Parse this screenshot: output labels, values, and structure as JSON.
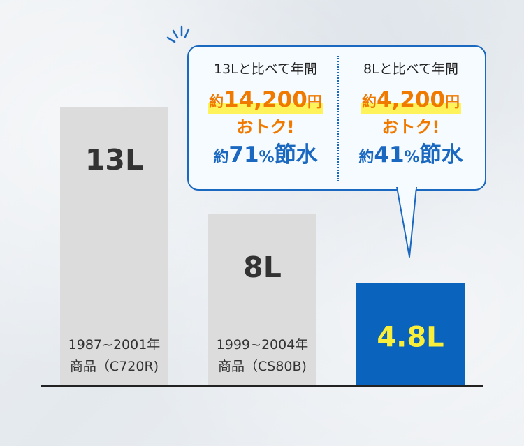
{
  "chart_data": {
    "type": "bar",
    "categories": [
      "13L",
      "8L",
      "4.8L"
    ],
    "values": [
      13,
      8,
      4.8
    ],
    "value_labels": [
      "13L",
      "8L",
      "4.8L"
    ],
    "bar_captions": [
      [
        "1987~2001年",
        "商品（C720R)"
      ],
      [
        "1999~2004年",
        "商品（CS80B)"
      ],
      []
    ],
    "colors": [
      "#dcdcdc",
      "#dcdcdc",
      "#0a63bd"
    ],
    "value_colors": [
      "#333333",
      "#333333",
      "#f9ef3b"
    ],
    "ylim": [
      0,
      13
    ],
    "grid": false
  },
  "callout": {
    "left": {
      "heading": "13Lと比べて年間",
      "saving_prefix": "約",
      "saving_amount": "14,200",
      "saving_unit": "円",
      "otoku": "おトク!",
      "water_prefix": "約",
      "water_percent": "71",
      "water_pct_sign": "%",
      "water_suffix": "節水"
    },
    "right": {
      "heading": "8Lと比べて年間",
      "saving_prefix": "約",
      "saving_amount": "4,200",
      "saving_unit": "円",
      "otoku": "おトク!",
      "water_prefix": "約",
      "water_percent": "41",
      "water_pct_sign": "%",
      "water_suffix": "節水"
    }
  },
  "colors": {
    "accent_blue": "#1a68c0",
    "accent_orange": "#f07a00",
    "highlight_yellow": "#fff35c"
  }
}
